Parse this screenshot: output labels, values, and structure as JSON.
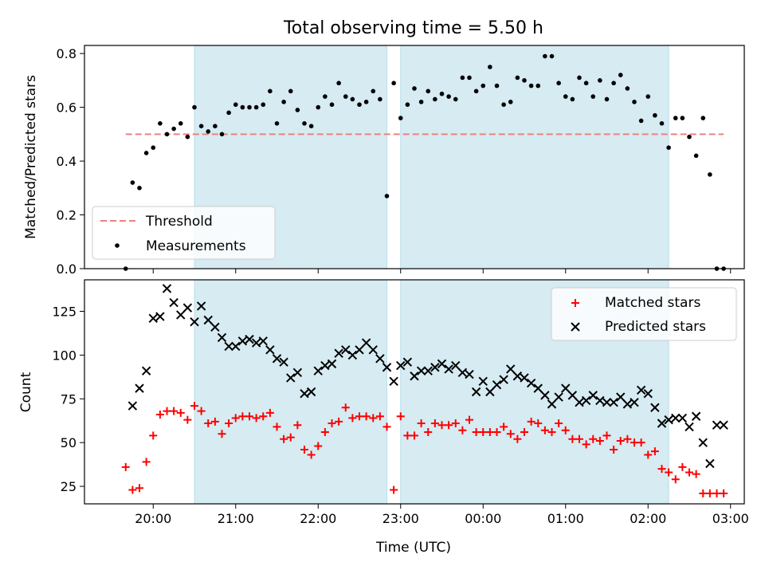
{
  "figure": {
    "title": "Total observing time = 5.50 h"
  },
  "chart_data": [
    {
      "type": "scatter",
      "panel": "top",
      "xlabel": "",
      "ylabel": "Matched/Predicted stars",
      "ylim": [
        0,
        0.83
      ],
      "yticks": [
        0.0,
        0.2,
        0.4,
        0.6,
        0.8
      ],
      "ytick_labels": [
        "0.0",
        "0.2",
        "0.4",
        "0.6",
        "0.8"
      ],
      "legend_position": "lower-left",
      "series": [
        {
          "name": "Threshold",
          "style": "dashed-line",
          "color": "#f08080",
          "x": [
            "19:40",
            "02:55"
          ],
          "y": [
            0.5,
            0.5
          ]
        },
        {
          "name": "Measurements",
          "style": "points",
          "color": "#000000",
          "x": [
            "19:40",
            "19:45",
            "19:50",
            "19:55",
            "20:00",
            "20:05",
            "20:10",
            "20:15",
            "20:20",
            "20:25",
            "20:30",
            "20:35",
            "20:40",
            "20:45",
            "20:50",
            "20:55",
            "21:00",
            "21:05",
            "21:10",
            "21:15",
            "21:20",
            "21:25",
            "21:30",
            "21:35",
            "21:40",
            "21:45",
            "21:50",
            "21:55",
            "22:00",
            "22:05",
            "22:10",
            "22:15",
            "22:20",
            "22:25",
            "22:30",
            "22:35",
            "22:40",
            "22:45",
            "22:50",
            "22:55",
            "23:00",
            "23:05",
            "23:10",
            "23:15",
            "23:20",
            "23:25",
            "23:30",
            "23:35",
            "23:40",
            "23:45",
            "23:50",
            "23:55",
            "00:00",
            "00:05",
            "00:10",
            "00:15",
            "00:20",
            "00:25",
            "00:30",
            "00:35",
            "00:40",
            "00:45",
            "00:50",
            "00:55",
            "01:00",
            "01:05",
            "01:10",
            "01:15",
            "01:20",
            "01:25",
            "01:30",
            "01:35",
            "01:40",
            "01:45",
            "01:50",
            "01:55",
            "02:00",
            "02:05",
            "02:10",
            "02:15",
            "02:20",
            "02:25",
            "02:30",
            "02:35",
            "02:40",
            "02:45",
            "02:50",
            "02:55"
          ],
          "y": [
            0.0,
            0.32,
            0.3,
            0.43,
            0.45,
            0.54,
            0.5,
            0.52,
            0.54,
            0.49,
            0.6,
            0.53,
            0.51,
            0.53,
            0.5,
            0.58,
            0.61,
            0.6,
            0.6,
            0.6,
            0.61,
            0.66,
            0.54,
            0.62,
            0.66,
            0.59,
            0.54,
            0.53,
            0.6,
            0.64,
            0.61,
            0.69,
            0.64,
            0.63,
            0.61,
            0.62,
            0.66,
            0.63,
            0.27,
            0.69,
            0.56,
            0.61,
            0.67,
            0.62,
            0.66,
            0.63,
            0.65,
            0.64,
            0.63,
            0.71,
            0.71,
            0.66,
            0.68,
            0.75,
            0.68,
            0.61,
            0.62,
            0.71,
            0.7,
            0.68,
            0.68,
            0.79,
            0.79,
            0.69,
            0.64,
            0.63,
            0.71,
            0.69,
            0.64,
            0.7,
            0.63,
            0.69,
            0.72,
            0.67,
            0.62,
            0.55,
            0.64,
            0.57,
            0.54,
            0.45,
            0.56,
            0.56,
            0.49,
            0.42,
            0.56,
            0.35,
            0.0,
            0.0
          ]
        }
      ]
    },
    {
      "type": "scatter",
      "panel": "bottom",
      "xlabel": "Time (UTC)",
      "ylabel": "Count",
      "ylim": [
        15,
        143
      ],
      "yticks": [
        25,
        50,
        75,
        100,
        125
      ],
      "ytick_labels": [
        "25",
        "50",
        "75",
        "100",
        "125"
      ],
      "xticks": [
        "20:00",
        "21:00",
        "22:00",
        "23:00",
        "00:00",
        "01:00",
        "02:00",
        "03:00"
      ],
      "legend_position": "upper-right",
      "series": [
        {
          "name": "Matched stars",
          "marker": "plus",
          "color": "#ff0000",
          "x": [
            "19:40",
            "19:45",
            "19:50",
            "19:55",
            "20:00",
            "20:05",
            "20:10",
            "20:15",
            "20:20",
            "20:25",
            "20:30",
            "20:35",
            "20:40",
            "20:45",
            "20:50",
            "20:55",
            "21:00",
            "21:05",
            "21:10",
            "21:15",
            "21:20",
            "21:25",
            "21:30",
            "21:35",
            "21:40",
            "21:45",
            "21:50",
            "21:55",
            "22:00",
            "22:05",
            "22:10",
            "22:15",
            "22:20",
            "22:25",
            "22:30",
            "22:35",
            "22:40",
            "22:45",
            "22:50",
            "22:55",
            "23:00",
            "23:05",
            "23:10",
            "23:15",
            "23:20",
            "23:25",
            "23:30",
            "23:35",
            "23:40",
            "23:45",
            "23:50",
            "23:55",
            "00:00",
            "00:05",
            "00:10",
            "00:15",
            "00:20",
            "00:25",
            "00:30",
            "00:35",
            "00:40",
            "00:45",
            "00:50",
            "00:55",
            "01:00",
            "01:05",
            "01:10",
            "01:15",
            "01:20",
            "01:25",
            "01:30",
            "01:35",
            "01:40",
            "01:45",
            "01:50",
            "01:55",
            "02:00",
            "02:05",
            "02:10",
            "02:15",
            "02:20",
            "02:25",
            "02:30",
            "02:35",
            "02:40",
            "02:45",
            "02:50",
            "02:55"
          ],
          "y": [
            36,
            23,
            24,
            39,
            54,
            66,
            68,
            68,
            67,
            63,
            71,
            68,
            61,
            62,
            55,
            61,
            64,
            65,
            65,
            64,
            65,
            67,
            59,
            52,
            53,
            60,
            46,
            43,
            48,
            56,
            61,
            62,
            70,
            64,
            65,
            65,
            64,
            65,
            59,
            23,
            65,
            54,
            54,
            61,
            56,
            61,
            60,
            60,
            61,
            57,
            63,
            56,
            56,
            56,
            56,
            59,
            55,
            52,
            56,
            62,
            61,
            57,
            56,
            61,
            57,
            52,
            52,
            49,
            52,
            51,
            54,
            46,
            51,
            52,
            50,
            50,
            43,
            45,
            35,
            33,
            29,
            36,
            33,
            32,
            21,
            21,
            21,
            21
          ]
        },
        {
          "name": "Predicted stars",
          "marker": "x",
          "color": "#000000",
          "x": [
            "19:45",
            "19:50",
            "19:55",
            "20:00",
            "20:05",
            "20:10",
            "20:15",
            "20:20",
            "20:25",
            "20:30",
            "20:35",
            "20:40",
            "20:45",
            "20:50",
            "20:55",
            "21:00",
            "21:05",
            "21:10",
            "21:15",
            "21:20",
            "21:25",
            "21:30",
            "21:35",
            "21:40",
            "21:45",
            "21:50",
            "21:55",
            "22:00",
            "22:05",
            "22:10",
            "22:15",
            "22:20",
            "22:25",
            "22:30",
            "22:35",
            "22:40",
            "22:45",
            "22:50",
            "22:55",
            "23:00",
            "23:05",
            "23:10",
            "23:15",
            "23:20",
            "23:25",
            "23:30",
            "23:35",
            "23:40",
            "23:45",
            "23:50",
            "23:55",
            "00:00",
            "00:05",
            "00:10",
            "00:15",
            "00:20",
            "00:25",
            "00:30",
            "00:35",
            "00:40",
            "00:45",
            "00:50",
            "00:55",
            "01:00",
            "01:05",
            "01:10",
            "01:15",
            "01:20",
            "01:25",
            "01:30",
            "01:35",
            "01:40",
            "01:45",
            "01:50",
            "01:55",
            "02:00",
            "02:05",
            "02:10",
            "02:15",
            "02:20",
            "02:25",
            "02:30",
            "02:35",
            "02:40",
            "02:45",
            "02:50",
            "02:55"
          ],
          "y": [
            71,
            81,
            91,
            121,
            122,
            138,
            130,
            123,
            127,
            119,
            128,
            120,
            116,
            110,
            105,
            105,
            108,
            109,
            107,
            108,
            103,
            98,
            96,
            87,
            90,
            78,
            79,
            91,
            94,
            95,
            101,
            103,
            100,
            103,
            107,
            103,
            98,
            93,
            85,
            94,
            96,
            88,
            91,
            91,
            93,
            95,
            92,
            94,
            90,
            89,
            79,
            85,
            79,
            83,
            86,
            92,
            88,
            87,
            84,
            81,
            77,
            72,
            76,
            81,
            77,
            73,
            74,
            77,
            74,
            73,
            73,
            76,
            72,
            73,
            80,
            78,
            70,
            61,
            63,
            64,
            64,
            59,
            65,
            50,
            38,
            60,
            60
          ]
        }
      ]
    }
  ],
  "shading": {
    "color": "#add8e6",
    "spans": [
      [
        "20:30",
        "22:50"
      ],
      [
        "23:00",
        "02:15"
      ]
    ]
  }
}
